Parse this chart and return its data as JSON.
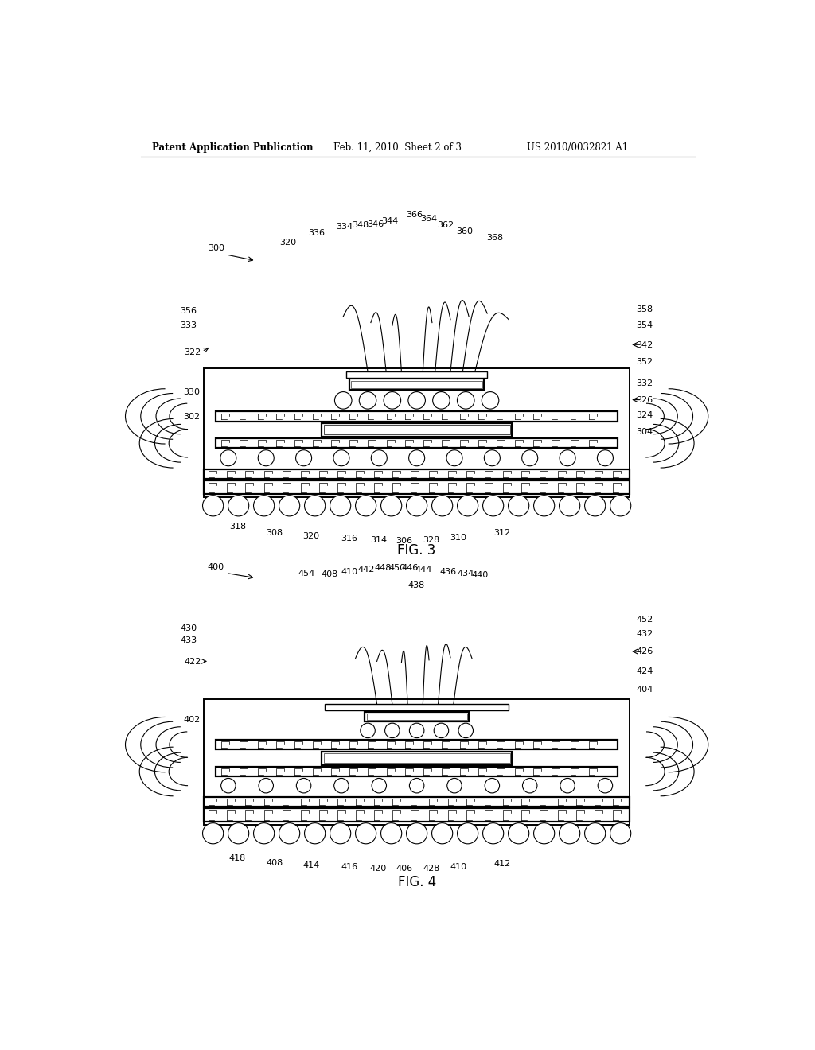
{
  "bg_color": "#ffffff",
  "line_color": "#000000",
  "header_text": "Patent Application Publication",
  "header_date": "Feb. 11, 2010  Sheet 2 of 3",
  "header_patent": "US 2010/0032821 A1",
  "fig3_label": "FIG. 3",
  "fig4_label": "FIG. 4"
}
